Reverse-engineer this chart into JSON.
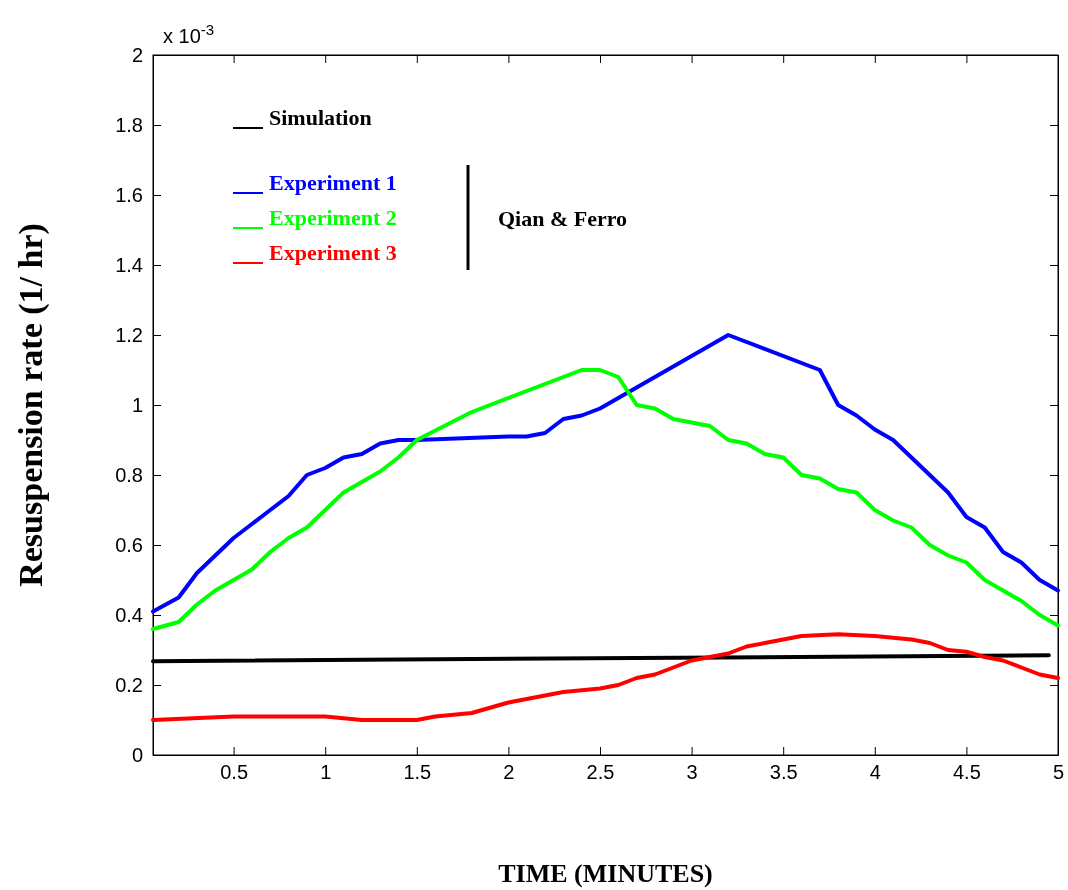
{
  "chart_data": {
    "type": "line",
    "xlabel": "TIME (MINUTES)",
    "ylabel": "Resuspension rate (1/ hr)",
    "xlim": [
      0.06,
      5
    ],
    "xticks": [
      0.5,
      1,
      1.5,
      2,
      2.5,
      3,
      3.5,
      4,
      4.5,
      5
    ],
    "ylim": [
      0,
      2
    ],
    "yticks": [
      0,
      0.2,
      0.4,
      0.6,
      0.8,
      1,
      1.2,
      1.4,
      1.6,
      1.8,
      2
    ],
    "legend": "top left",
    "grid": false,
    "annotations": [
      "x 10$^{-3}$",
      "Qian & Ferro"
    ],
    "series": [
      {
        "name": "Simulation",
        "color": "#000000",
        "x": [
          0.06,
          4.95
        ],
        "values": [
          0.268,
          0.285
        ]
      },
      {
        "name": "Experiment 1",
        "color": "#0000ff",
        "x": [
          0.06,
          0.2,
          0.3,
          0.4,
          0.5,
          0.6,
          0.7,
          0.8,
          0.9,
          1.0,
          1.1,
          1.2,
          1.3,
          1.4,
          1.5,
          2.0,
          2.1,
          2.2,
          2.3,
          2.4,
          2.5,
          2.6,
          3.2,
          3.7,
          3.8,
          3.9,
          4.0,
          4.1,
          4.2,
          4.3,
          4.4,
          4.5,
          4.6,
          4.7,
          4.8,
          4.9,
          5.0
        ],
        "values": [
          0.41,
          0.45,
          0.52,
          0.57,
          0.62,
          0.66,
          0.7,
          0.74,
          0.8,
          0.82,
          0.85,
          0.86,
          0.89,
          0.9,
          0.9,
          0.91,
          0.91,
          0.92,
          0.96,
          0.97,
          0.99,
          1.02,
          1.2,
          1.1,
          1.0,
          0.97,
          0.93,
          0.9,
          0.85,
          0.8,
          0.75,
          0.68,
          0.65,
          0.58,
          0.55,
          0.5,
          0.47
        ]
      },
      {
        "name": "Experiment 2",
        "color": "#00ff00",
        "x": [
          0.06,
          0.2,
          0.3,
          0.4,
          0.5,
          0.6,
          0.7,
          0.8,
          0.9,
          1.0,
          1.1,
          1.2,
          1.3,
          1.4,
          1.5,
          1.8,
          2.4,
          2.5,
          2.6,
          2.7,
          2.8,
          2.9,
          3.0,
          3.1,
          3.2,
          3.3,
          3.4,
          3.5,
          3.6,
          3.7,
          3.8,
          3.9,
          4.0,
          4.1,
          4.2,
          4.3,
          4.4,
          4.5,
          4.6,
          4.7,
          4.8,
          4.9,
          5.0
        ],
        "values": [
          0.36,
          0.38,
          0.43,
          0.47,
          0.5,
          0.53,
          0.58,
          0.62,
          0.65,
          0.7,
          0.75,
          0.78,
          0.81,
          0.85,
          0.9,
          0.98,
          1.1,
          1.1,
          1.08,
          1.0,
          0.99,
          0.96,
          0.95,
          0.94,
          0.9,
          0.89,
          0.86,
          0.85,
          0.8,
          0.79,
          0.76,
          0.75,
          0.7,
          0.67,
          0.65,
          0.6,
          0.57,
          0.55,
          0.5,
          0.47,
          0.44,
          0.4,
          0.37
        ]
      },
      {
        "name": "Experiment 3",
        "color": "#ff0000",
        "x": [
          0.06,
          0.5,
          0.8,
          1.0,
          1.2,
          1.5,
          1.6,
          1.8,
          2.0,
          2.2,
          2.3,
          2.5,
          2.6,
          2.7,
          2.8,
          3.0,
          3.1,
          3.2,
          3.3,
          3.4,
          3.5,
          3.6,
          3.8,
          4.0,
          4.2,
          4.3,
          4.4,
          4.5,
          4.6,
          4.7,
          4.8,
          4.9,
          5.0
        ],
        "values": [
          0.1,
          0.11,
          0.11,
          0.11,
          0.1,
          0.1,
          0.11,
          0.12,
          0.15,
          0.17,
          0.18,
          0.19,
          0.2,
          0.22,
          0.23,
          0.27,
          0.28,
          0.29,
          0.31,
          0.32,
          0.33,
          0.34,
          0.345,
          0.34,
          0.33,
          0.32,
          0.3,
          0.295,
          0.28,
          0.27,
          0.25,
          0.23,
          0.22
        ]
      }
    ]
  }
}
